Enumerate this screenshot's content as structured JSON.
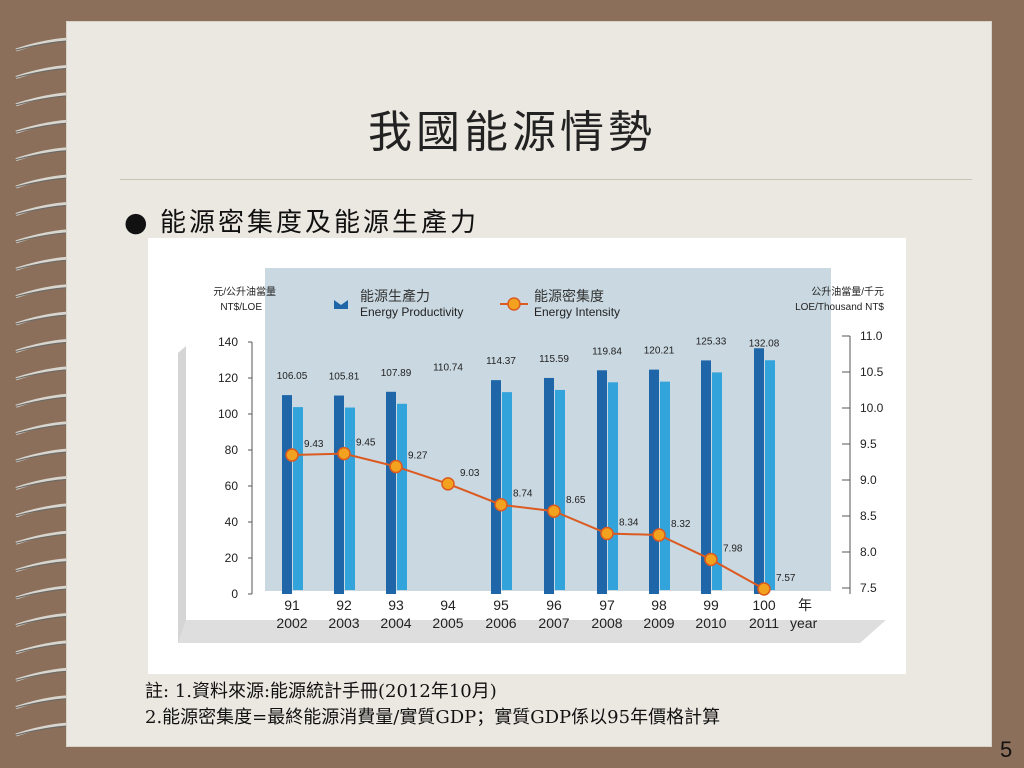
{
  "slide": {
    "title": "我國能源情勢",
    "bullet": "能源密集度及能源生產力",
    "note_line1": "註: 1.資料來源:能源統計手冊(2012年10月)",
    "note_line2": "2.能源密集度=最終能源消費量/實質GDP；實質GDP係以95年價格計算",
    "page_number": "5"
  },
  "colors": {
    "background": "#8b6f5a",
    "paper": "#ebe8e1",
    "plot_bg": "#c9d8e1",
    "bar_dark": "#1e66a8",
    "bar_light": "#33a3dc",
    "line": "#dc5a20",
    "marker": "#f2a21e"
  },
  "chart_data": {
    "type": "bar+line",
    "left_axis": {
      "label_cn": "元/公升油當量",
      "label_en": "NT$/LOE",
      "ylim": [
        0,
        140
      ],
      "ticks": [
        "0",
        "20",
        "40",
        "60",
        "80",
        "100",
        "120",
        "140"
      ]
    },
    "right_axis": {
      "label_cn": "公升油當量/千元",
      "label_en": "LOE/Thousand NT$",
      "ylim": [
        7.5,
        11.0
      ],
      "ticks": [
        "7.5",
        "8.0",
        "8.5",
        "9.0",
        "9.5",
        "10.0",
        "10.5",
        "11.0"
      ]
    },
    "legend": [
      {
        "cn": "能源生產力",
        "en": "Energy Productivity",
        "marker": "bar"
      },
      {
        "cn": "能源密集度",
        "en": "Energy Intensity",
        "marker": "line"
      }
    ],
    "categories_roc": [
      "91",
      "92",
      "93",
      "94",
      "95",
      "96",
      "97",
      "98",
      "99",
      "100"
    ],
    "categories_ad": [
      "2002",
      "2003",
      "2004",
      "2005",
      "2006",
      "2007",
      "2008",
      "2009",
      "2010",
      "2011"
    ],
    "x_unit_cn": "年",
    "x_unit_en": "year",
    "series": [
      {
        "name": "能源生產力",
        "axis": "left",
        "values": [
          106.05,
          105.81,
          107.89,
          110.74,
          114.37,
          115.59,
          119.84,
          120.21,
          125.33,
          132.08
        ],
        "labels": [
          "106.05",
          "105.81",
          "107.89",
          "110.74",
          "114.37",
          "115.59",
          "119.84",
          "120.21",
          "125.33",
          "132.08"
        ]
      },
      {
        "name": "能源密集度",
        "axis": "right",
        "values": [
          9.43,
          9.45,
          9.27,
          9.03,
          8.74,
          8.65,
          8.34,
          8.32,
          7.98,
          7.57
        ],
        "labels": [
          "9.43",
          "9.45",
          "9.27",
          "9.03",
          "8.74",
          "8.65",
          "8.34",
          "8.32",
          "7.98",
          "7.57"
        ]
      }
    ]
  }
}
